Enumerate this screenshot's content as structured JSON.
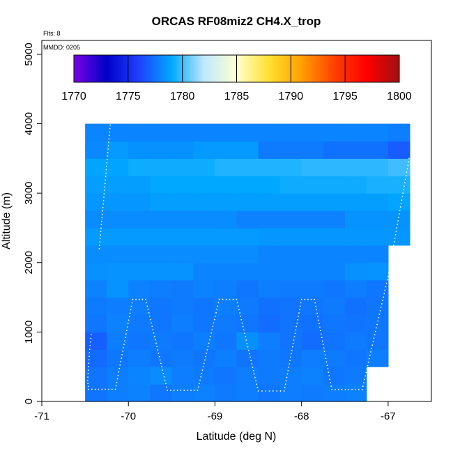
{
  "chart_data": {
    "type": "heatmap",
    "title": "ORCAS RF08miz2 CH4.X_trop",
    "xlabel": "Latitude (deg N)",
    "ylabel": "Altitude (m)",
    "xlim": [
      -71,
      -66.5
    ],
    "ylim": [
      0,
      5200
    ],
    "x_ticks": [
      -71,
      -70,
      -69,
      -68,
      -67
    ],
    "y_ticks": [
      0,
      1000,
      2000,
      3000,
      4000,
      5000
    ],
    "flights_note": "Flts: 8",
    "date_note": "MMDD: 0205",
    "colorbar": {
      "min": 1770,
      "max": 1800,
      "ticks": [
        1770,
        1775,
        1780,
        1785,
        1790,
        1795,
        1800
      ],
      "colors": [
        "#7a00e6",
        "#0000c8",
        "#2040ff",
        "#00a8ff",
        "#bfe8ff",
        "#ffffd0",
        "#ffe030",
        "#ffa000",
        "#ff4000",
        "#ff0000",
        "#a01010"
      ]
    },
    "grid": {
      "lat_edges": [
        -70.5,
        -70.25,
        -70.0,
        -69.75,
        -69.5,
        -69.25,
        -69.0,
        -68.75,
        -68.5,
        -68.25,
        -68.0,
        -67.75,
        -67.5,
        -67.25,
        -67.0,
        -66.75
      ],
      "alt_step": 250,
      "default_value": 1778.5,
      "layers": [
        {
          "alt": 0,
          "values": [
            1777.5,
            1777.8,
            1777.9,
            1777.6,
            1777.8,
            1777.9,
            1777.7,
            1777.8,
            1777.6,
            1777.8,
            1777.7,
            1777.8,
            1777.9,
            null,
            null
          ]
        },
        {
          "alt": 250,
          "values": [
            1777.5,
            1777.8,
            1778.0,
            1778.2,
            1777.8,
            1777.7,
            1777.6,
            1777.8,
            1777.7,
            1777.8,
            1777.9,
            1777.6,
            1777.7,
            null,
            null
          ]
        },
        {
          "alt": 500,
          "values": [
            1777.2,
            1777.6,
            1777.8,
            1777.6,
            1777.7,
            1777.6,
            1777.8,
            1777.5,
            1777.7,
            1777.6,
            1777.8,
            1777.7,
            1777.6,
            1777.8,
            null
          ]
        },
        {
          "alt": 750,
          "values": [
            1776.9,
            1777.8,
            1777.6,
            1777.7,
            1777.6,
            1777.8,
            1777.6,
            1778.3,
            1777.8,
            1777.5,
            1777.3,
            1777.5,
            1777.7,
            1777.6,
            null
          ]
        },
        {
          "alt": 1000,
          "values": [
            1777.6,
            1777.9,
            1777.7,
            1777.6,
            1777.8,
            1777.6,
            1777.7,
            1777.6,
            1777.3,
            1777.5,
            1777.4,
            1777.6,
            1777.5,
            1777.6,
            null
          ]
        },
        {
          "alt": 1250,
          "values": [
            1777.7,
            1777.8,
            1777.8,
            1777.6,
            1777.7,
            1777.6,
            1777.8,
            1777.7,
            1777.4,
            1777.5,
            1777.6,
            1777.7,
            1777.4,
            1777.6,
            null
          ]
        },
        {
          "alt": 1500,
          "values": [
            1777.9,
            1778.4,
            1777.9,
            1777.8,
            1777.7,
            1777.9,
            1777.8,
            1777.6,
            1777.8,
            1777.7,
            1777.7,
            1777.6,
            1777.8,
            1777.6,
            null
          ]
        },
        {
          "alt": 1750,
          "values": [
            1778.3,
            1778.4,
            1778.4,
            1778.4,
            1778.4,
            1778.0,
            1778.0,
            1778.0,
            1778.0,
            1778.0,
            1778.0,
            1778.0,
            1778.3,
            1778.4,
            null
          ]
        },
        {
          "alt": 2000,
          "values": [
            1778.2,
            1778.2,
            1778.2,
            1778.2,
            1778.2,
            1778.2,
            1778.2,
            1778.2,
            1778.0,
            1778.0,
            1778.0,
            1778.0,
            1778.0,
            1778.0,
            null
          ]
        },
        {
          "alt": 2250,
          "values": [
            1778.6,
            1778.6,
            1778.6,
            1778.6,
            1778.6,
            1778.6,
            1778.6,
            1778.6,
            1778.5,
            1778.5,
            1778.5,
            1778.5,
            1778.5,
            1778.5,
            1778.5
          ]
        },
        {
          "alt": 2500,
          "values": [
            1778.2,
            1778.2,
            1778.2,
            1778.2,
            1778.2,
            1778.2,
            1778.2,
            1777.9,
            1777.9,
            1777.9,
            1777.9,
            1777.9,
            1778.4,
            1778.4,
            1778.4
          ]
        },
        {
          "alt": 2750,
          "values": [
            1778.5,
            1778.5,
            1778.5,
            1778.7,
            1778.7,
            1778.7,
            1778.7,
            1778.7,
            1778.7,
            1778.7,
            1778.7,
            1778.7,
            1778.7,
            1778.7,
            1778.9
          ]
        },
        {
          "alt": 3000,
          "values": [
            1778.7,
            1778.7,
            1778.7,
            1779.0,
            1779.0,
            1779.0,
            1779.0,
            1779.0,
            1779.0,
            1779.2,
            1779.2,
            1779.2,
            1779.2,
            1779.4,
            1779.4
          ]
        },
        {
          "alt": 3250,
          "values": [
            1778.9,
            1778.9,
            1779.2,
            1779.2,
            1779.2,
            1779.2,
            1779.5,
            1779.5,
            1779.5,
            1779.5,
            1779.7,
            1779.7,
            1779.7,
            1779.7,
            1780.0
          ]
        },
        {
          "alt": 3500,
          "values": [
            1778.1,
            1778.6,
            1778.3,
            1778.3,
            1778.3,
            1778.6,
            1778.6,
            1778.6,
            1777.7,
            1777.7,
            1777.7,
            1777.4,
            1777.4,
            1777.4,
            1776.8
          ]
        },
        {
          "alt": 3750,
          "values": [
            1778.0,
            1778.0,
            1778.0,
            1778.0,
            1778.0,
            1778.0,
            1778.0,
            1778.0,
            1778.0,
            1778.0,
            1778.0,
            1778.0,
            1778.0,
            1778.0,
            1777.8
          ]
        }
      ]
    },
    "flight_track": {
      "marker_color": "#ffffff",
      "segments": [
        [
          [
            -70.21,
            3980
          ],
          [
            -70.34,
            2150
          ]
        ],
        [
          [
            -70.43,
            960
          ],
          [
            -70.45,
            700
          ],
          [
            -70.47,
            300
          ],
          [
            -70.46,
            175
          ],
          [
            -70.15,
            175
          ],
          [
            -69.95,
            1470
          ],
          [
            -69.8,
            1470
          ],
          [
            -69.55,
            160
          ],
          [
            -69.2,
            160
          ],
          [
            -68.95,
            1470
          ],
          [
            -68.75,
            1470
          ],
          [
            -68.5,
            150
          ],
          [
            -68.2,
            150
          ],
          [
            -68.0,
            1470
          ],
          [
            -67.85,
            1470
          ],
          [
            -67.65,
            170
          ],
          [
            -67.3,
            170
          ],
          [
            -67.0,
            1800
          ],
          [
            -66.75,
            3550
          ]
        ]
      ]
    }
  }
}
